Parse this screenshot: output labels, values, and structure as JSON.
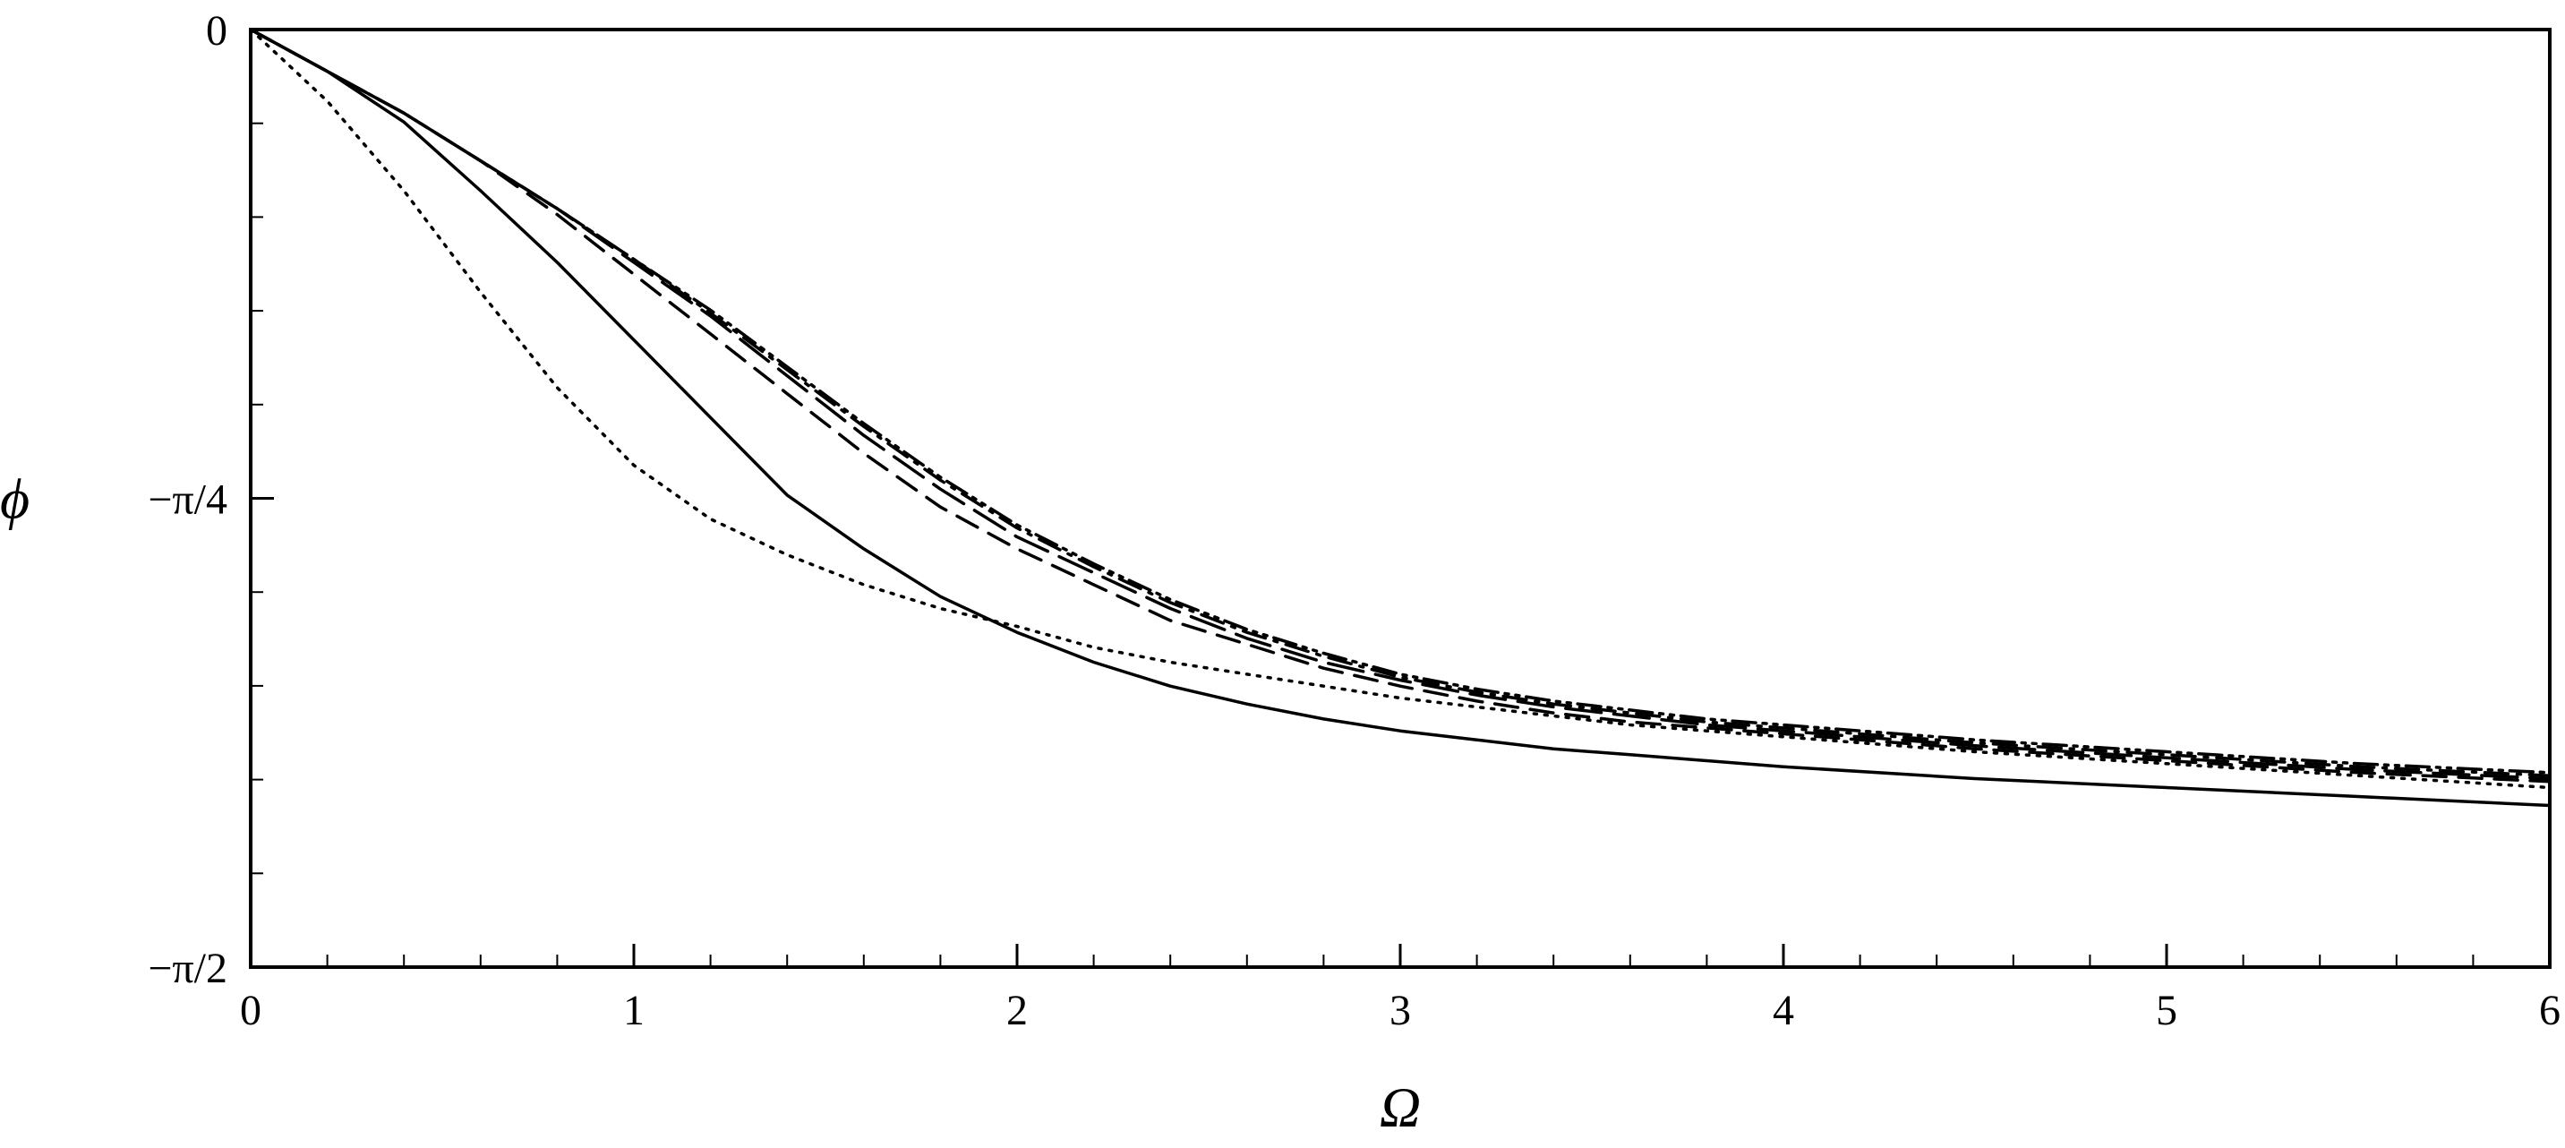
{
  "chart_data": {
    "type": "line",
    "title": "",
    "xlabel": "Ω",
    "ylabel": "ϕ",
    "xlim": [
      0,
      6
    ],
    "ylim": [
      -1.5708,
      0
    ],
    "x_ticks": [
      {
        "value": 0,
        "label": "0"
      },
      {
        "value": 1,
        "label": "1"
      },
      {
        "value": 2,
        "label": "2"
      },
      {
        "value": 3,
        "label": "3"
      },
      {
        "value": 4,
        "label": "4"
      },
      {
        "value": 5,
        "label": "5"
      },
      {
        "value": 6,
        "label": "6"
      }
    ],
    "y_ticks": [
      {
        "value": 0,
        "label": "0"
      },
      {
        "value": -0.7854,
        "label": "−π/4"
      },
      {
        "value": -1.5708,
        "label": "−π/2"
      }
    ],
    "grid": false,
    "legend": "none",
    "x": [
      0,
      0.2,
      0.4,
      0.6,
      0.8,
      1.0,
      1.2,
      1.4,
      1.6,
      1.8,
      2.0,
      2.2,
      2.4,
      2.6,
      2.8,
      3.0,
      3.2,
      3.4,
      3.6,
      3.8,
      4.0,
      4.5,
      5.0,
      5.5,
      6.0
    ],
    "series": [
      {
        "style": "solid",
        "values": [
          0,
          -0.07,
          -0.155,
          -0.27,
          -0.39,
          -0.52,
          -0.65,
          -0.78,
          -0.87,
          -0.95,
          -1.01,
          -1.06,
          -1.1,
          -1.13,
          -1.155,
          -1.175,
          -1.19,
          -1.205,
          -1.215,
          -1.225,
          -1.235,
          -1.255,
          -1.27,
          -1.285,
          -1.3
        ]
      },
      {
        "style": "dotted",
        "values": [
          0,
          -0.12,
          -0.27,
          -0.44,
          -0.6,
          -0.73,
          -0.82,
          -0.88,
          -0.93,
          -0.97,
          -1.0,
          -1.035,
          -1.06,
          -1.08,
          -1.1,
          -1.12,
          -1.135,
          -1.15,
          -1.165,
          -1.175,
          -1.185,
          -1.21,
          -1.23,
          -1.25,
          -1.27
        ]
      },
      {
        "style": "dashed",
        "values": [
          0,
          -0.07,
          -0.14,
          -0.22,
          -0.31,
          -0.41,
          -0.51,
          -0.61,
          -0.71,
          -0.8,
          -0.87,
          -0.93,
          -0.99,
          -1.03,
          -1.07,
          -1.1,
          -1.125,
          -1.145,
          -1.16,
          -1.17,
          -1.18,
          -1.205,
          -1.225,
          -1.245,
          -1.26
        ]
      },
      {
        "style": "long-dash",
        "values": [
          0,
          -0.07,
          -0.14,
          -0.22,
          -0.3,
          -0.39,
          -0.48,
          -0.58,
          -0.68,
          -0.77,
          -0.85,
          -0.91,
          -0.97,
          -1.02,
          -1.06,
          -1.09,
          -1.115,
          -1.135,
          -1.15,
          -1.165,
          -1.175,
          -1.2,
          -1.22,
          -1.24,
          -1.255
        ]
      },
      {
        "style": "dash-dot",
        "values": [
          0,
          -0.07,
          -0.14,
          -0.22,
          -0.3,
          -0.385,
          -0.475,
          -0.57,
          -0.665,
          -0.755,
          -0.835,
          -0.9,
          -0.96,
          -1.01,
          -1.05,
          -1.085,
          -1.11,
          -1.13,
          -1.145,
          -1.16,
          -1.17,
          -1.195,
          -1.215,
          -1.235,
          -1.25
        ]
      },
      {
        "style": "dash-dot-dot",
        "values": [
          0,
          -0.07,
          -0.14,
          -0.22,
          -0.3,
          -0.385,
          -0.47,
          -0.565,
          -0.66,
          -0.75,
          -0.83,
          -0.895,
          -0.955,
          -1.005,
          -1.045,
          -1.08,
          -1.105,
          -1.125,
          -1.14,
          -1.155,
          -1.165,
          -1.19,
          -1.21,
          -1.23,
          -1.245
        ]
      }
    ]
  }
}
